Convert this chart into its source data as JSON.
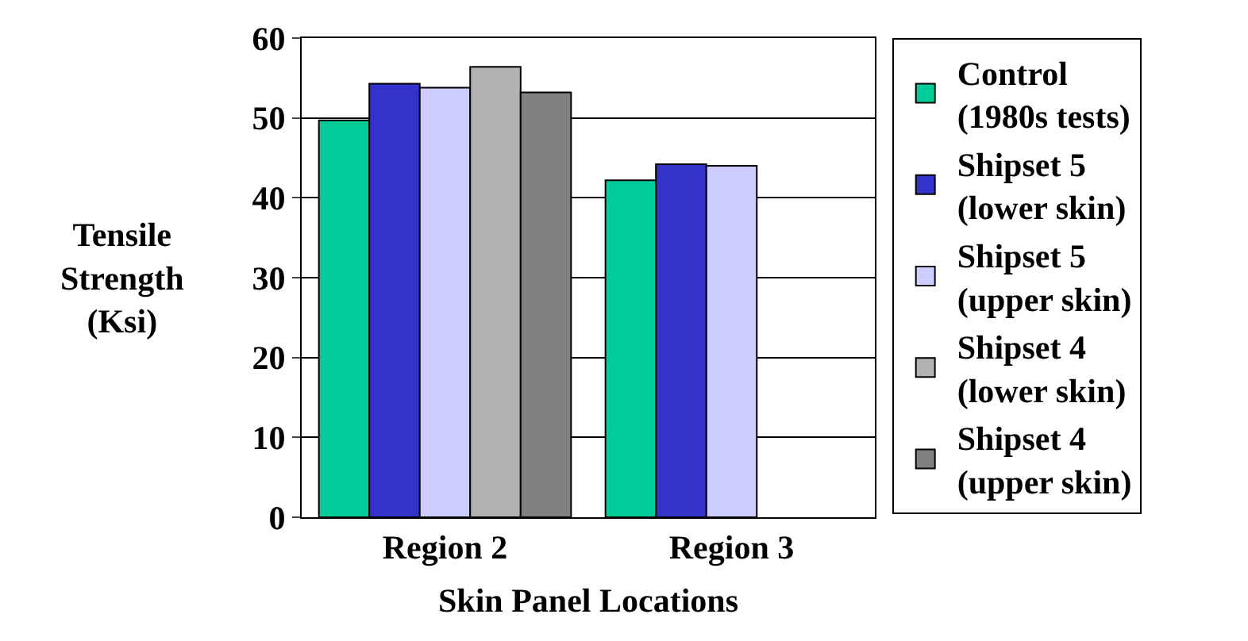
{
  "chart_data": {
    "type": "bar",
    "xlabel": "Skin Panel Locations",
    "ylabel": "Tensile Strength (Ksi)",
    "categories": [
      "Region 2",
      "Region 3"
    ],
    "series": [
      {
        "name": "Control (1980s tests)",
        "color": "#00cc99",
        "values": [
          49.7,
          42.2
        ]
      },
      {
        "name": "Shipset 5 (lower skin)",
        "color": "#3333cc",
        "values": [
          54.3,
          44.2
        ]
      },
      {
        "name": "Shipset 5 (upper skin)",
        "color": "#ccccff",
        "values": [
          53.8,
          44.0
        ]
      },
      {
        "name": "Shipset 4 (lower skin)",
        "color": "#b2b2b2",
        "values": [
          56.4,
          null
        ]
      },
      {
        "name": "Shipset 4 (upper skin)",
        "color": "#808080",
        "values": [
          53.2,
          null
        ]
      }
    ],
    "ylim": [
      0,
      60
    ],
    "yticks": [
      0,
      10,
      20,
      30,
      40,
      50,
      60
    ],
    "grid": "y",
    "legend": "right"
  }
}
